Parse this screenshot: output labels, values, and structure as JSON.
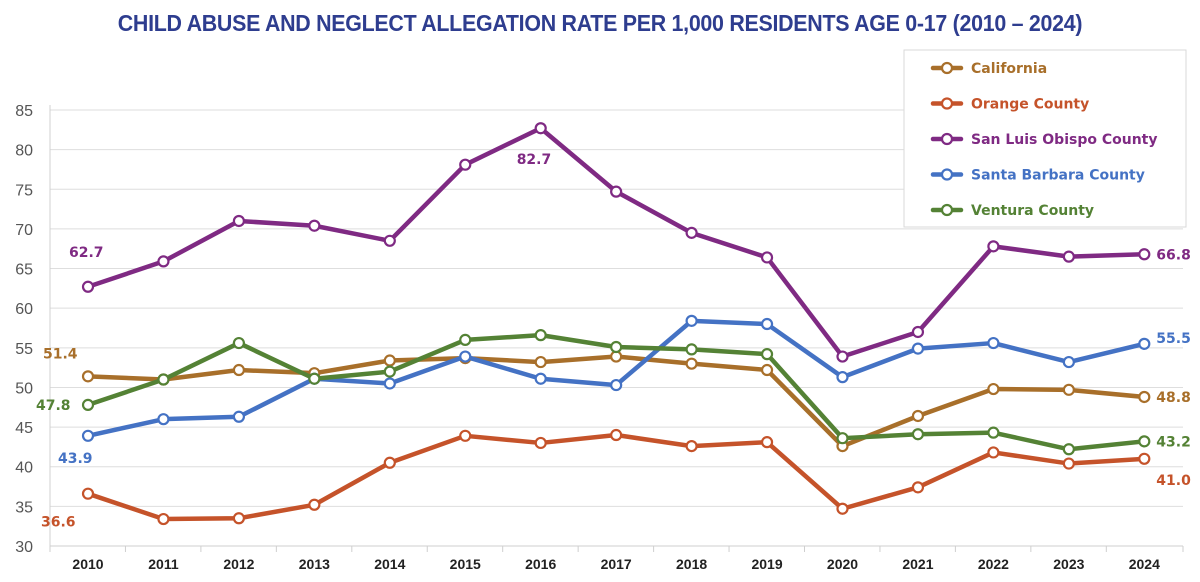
{
  "chart_data": {
    "type": "line",
    "title": "CHILD ABUSE AND NEGLECT ALLEGATION RATE PER 1,000 RESIDENTS AGE 0-17 (2010 – 2024)",
    "xlabel": "",
    "ylabel": "",
    "ylim": [
      30,
      85
    ],
    "yticks": [
      30,
      35,
      40,
      45,
      50,
      55,
      60,
      65,
      70,
      75,
      80,
      85
    ],
    "grid": true,
    "legend_position": "top-right",
    "x": [
      "2010",
      "2011",
      "2012",
      "2013",
      "2014",
      "2015",
      "2016",
      "2017",
      "2018",
      "2019",
      "2020",
      "2021",
      "2022",
      "2023",
      "2024"
    ],
    "series": [
      {
        "name": "California",
        "color": "#a86f2a",
        "values": [
          51.4,
          51.0,
          52.2,
          51.8,
          53.4,
          53.7,
          53.2,
          53.9,
          53.0,
          52.2,
          42.6,
          46.4,
          49.8,
          49.7,
          48.8
        ],
        "labels": [
          {
            "index": 0,
            "text": "51.4"
          },
          {
            "index": 14,
            "text": "48.8"
          }
        ]
      },
      {
        "name": "Orange County",
        "color": "#c5532a",
        "values": [
          36.6,
          33.4,
          33.5,
          35.2,
          40.5,
          43.9,
          43.0,
          44.0,
          42.6,
          43.1,
          34.7,
          37.4,
          41.8,
          40.4,
          41.0
        ],
        "labels": [
          {
            "index": 0,
            "text": "36.6"
          },
          {
            "index": 14,
            "text": "41.0"
          }
        ]
      },
      {
        "name": "San Luis Obispo County",
        "color": "#7f2a83",
        "values": [
          62.7,
          65.9,
          71.0,
          70.4,
          68.5,
          78.1,
          82.7,
          74.7,
          69.5,
          66.4,
          53.9,
          57.0,
          67.8,
          66.5,
          66.8
        ],
        "labels": [
          {
            "index": 0,
            "text": "62.7"
          },
          {
            "index": 6,
            "text": "82.7"
          },
          {
            "index": 14,
            "text": "66.8"
          }
        ]
      },
      {
        "name": "Santa Barbara County",
        "color": "#4472c4",
        "values": [
          43.9,
          46.0,
          46.3,
          51.1,
          50.5,
          53.9,
          51.1,
          50.3,
          58.4,
          58.0,
          51.3,
          54.9,
          55.6,
          53.2,
          55.5
        ],
        "labels": [
          {
            "index": 0,
            "text": "43.9"
          },
          {
            "index": 14,
            "text": "55.5"
          }
        ]
      },
      {
        "name": "Ventura County",
        "color": "#548235",
        "values": [
          47.8,
          51.0,
          55.6,
          51.1,
          52.0,
          56.0,
          56.6,
          55.1,
          54.8,
          54.2,
          43.6,
          44.1,
          44.3,
          42.2,
          43.2
        ],
        "labels": [
          {
            "index": 0,
            "text": "47.8"
          },
          {
            "index": 14,
            "text": "43.2"
          }
        ]
      }
    ]
  }
}
